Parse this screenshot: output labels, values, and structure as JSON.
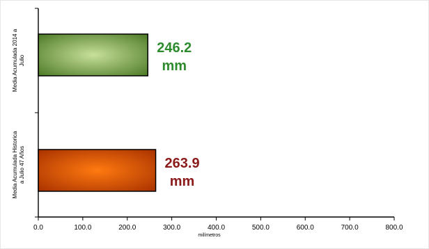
{
  "chart_data": {
    "type": "bar",
    "orientation": "horizontal",
    "categories": [
      "Media Acumulada 2014 a Julio",
      "Media Acumulada Historica a Julio 47 Años"
    ],
    "category_label_lines": [
      [
        "Media Acumulada 2014 a",
        "Julio"
      ],
      [
        "Media Acumulada Historica",
        "a Julio 47 Años"
      ]
    ],
    "values": [
      246.2,
      263.9
    ],
    "data_labels": [
      {
        "value": "246.2",
        "unit": "mm",
        "color": "#2e8b2e"
      },
      {
        "value": "263.9",
        "unit": "mm",
        "color": "#8b1a1a"
      }
    ],
    "bar_colors": [
      {
        "inner": "#c8e09a",
        "outer": "#4c7a26"
      },
      {
        "inner": "#ff7a10",
        "outer": "#a83200"
      }
    ],
    "xlabel": "milímetros",
    "ylabel": "",
    "title": "",
    "xlim": [
      0,
      800
    ],
    "xticks": [
      "0.0",
      "100.0",
      "200.0",
      "300.0",
      "400.0",
      "500.0",
      "600.0",
      "700.0",
      "800.0"
    ],
    "grid": false,
    "legend": "none"
  }
}
